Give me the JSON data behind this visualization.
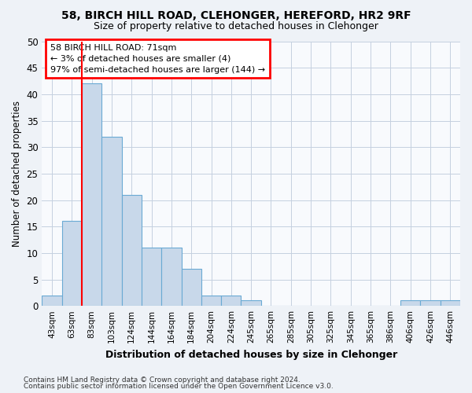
{
  "title1": "58, BIRCH HILL ROAD, CLEHONGER, HEREFORD, HR2 9RF",
  "title2": "Size of property relative to detached houses in Clehonger",
  "xlabel": "Distribution of detached houses by size in Clehonger",
  "ylabel": "Number of detached properties",
  "categories": [
    "43sqm",
    "63sqm",
    "83sqm",
    "103sqm",
    "124sqm",
    "144sqm",
    "164sqm",
    "184sqm",
    "204sqm",
    "224sqm",
    "245sqm",
    "265sqm",
    "285sqm",
    "305sqm",
    "325sqm",
    "345sqm",
    "365sqm",
    "386sqm",
    "406sqm",
    "426sqm",
    "446sqm"
  ],
  "values": [
    2,
    16,
    42,
    32,
    21,
    11,
    11,
    7,
    2,
    2,
    1,
    0,
    0,
    0,
    0,
    0,
    0,
    0,
    1,
    1,
    1
  ],
  "bar_color": "#c8d8ea",
  "bar_edge_color": "#6aaad4",
  "red_line_x": 1.5,
  "annotation_text": "58 BIRCH HILL ROAD: 71sqm\n← 3% of detached houses are smaller (4)\n97% of semi-detached houses are larger (144) →",
  "annotation_box_color": "white",
  "annotation_box_edge_color": "red",
  "ylim": [
    0,
    50
  ],
  "yticks": [
    0,
    5,
    10,
    15,
    20,
    25,
    30,
    35,
    40,
    45,
    50
  ],
  "footer1": "Contains HM Land Registry data © Crown copyright and database right 2024.",
  "footer2": "Contains public sector information licensed under the Open Government Licence v3.0.",
  "bg_color": "#eef2f7",
  "plot_bg_color": "#f8fafd",
  "grid_color": "#c5d0e0"
}
